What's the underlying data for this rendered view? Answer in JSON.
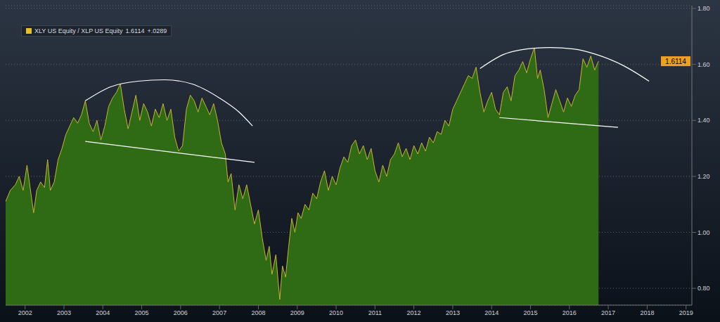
{
  "chart_data": {
    "type": "area",
    "grid": true,
    "legend": "upper left",
    "x": [
      2002.0,
      2002.12,
      2002.25,
      2002.35,
      2002.45,
      2002.55,
      2002.65,
      2002.72,
      2002.8,
      2002.9,
      2003.0,
      2003.08,
      2003.15,
      2003.25,
      2003.35,
      2003.45,
      2003.55,
      2003.65,
      2003.75,
      2003.85,
      2003.95,
      2004.05,
      2004.15,
      2004.25,
      2004.35,
      2004.45,
      2004.55,
      2004.65,
      2004.75,
      2004.85,
      2004.95,
      2005.05,
      2005.15,
      2005.25,
      2005.35,
      2005.45,
      2005.55,
      2005.65,
      2005.75,
      2005.85,
      2005.95,
      2006.05,
      2006.15,
      2006.25,
      2006.35,
      2006.45,
      2006.55,
      2006.65,
      2006.75,
      2006.85,
      2006.95,
      2007.05,
      2007.15,
      2007.25,
      2007.35,
      2007.45,
      2007.55,
      2007.65,
      2007.72,
      2007.8,
      2007.9,
      2008.0,
      2008.1,
      2008.2,
      2008.3,
      2008.4,
      2008.5,
      2008.6,
      2008.7,
      2008.78,
      2008.85,
      2008.95,
      2009.05,
      2009.12,
      2009.2,
      2009.28,
      2009.36,
      2009.44,
      2009.52,
      2009.6,
      2009.7,
      2009.8,
      2009.9,
      2010.0,
      2010.1,
      2010.2,
      2010.3,
      2010.4,
      2010.5,
      2010.6,
      2010.7,
      2010.8,
      2010.9,
      2011.0,
      2011.1,
      2011.2,
      2011.3,
      2011.4,
      2011.5,
      2011.6,
      2011.7,
      2011.8,
      2011.9,
      2012.0,
      2012.1,
      2012.2,
      2012.3,
      2012.4,
      2012.5,
      2012.6,
      2012.7,
      2012.8,
      2012.9,
      2013.0,
      2013.1,
      2013.2,
      2013.3,
      2013.4,
      2013.5,
      2013.6,
      2013.7,
      2013.8,
      2013.9,
      2014.0,
      2014.1,
      2014.2,
      2014.3,
      2014.4,
      2014.5,
      2014.6,
      2014.7,
      2014.8,
      2014.9,
      2015.0,
      2015.1,
      2015.2,
      2015.3,
      2015.4,
      2015.5,
      2015.6,
      2015.68,
      2015.75,
      2015.85,
      2015.95,
      2016.05,
      2016.15,
      2016.25,
      2016.35,
      2016.45,
      2016.55,
      2016.65,
      2016.75,
      2016.85,
      2016.95,
      2017.05,
      2017.15,
      2017.25
    ],
    "series": [
      {
        "name": "XLY US Equity / XLP US Equity",
        "color": "#2f6a14",
        "values": [
          1.11,
          1.15,
          1.17,
          1.2,
          1.15,
          1.24,
          1.14,
          1.07,
          1.15,
          1.18,
          1.16,
          1.26,
          1.15,
          1.18,
          1.26,
          1.3,
          1.35,
          1.38,
          1.41,
          1.39,
          1.42,
          1.47,
          1.39,
          1.36,
          1.4,
          1.33,
          1.38,
          1.45,
          1.48,
          1.5,
          1.53,
          1.44,
          1.37,
          1.43,
          1.49,
          1.4,
          1.46,
          1.43,
          1.38,
          1.44,
          1.41,
          1.46,
          1.4,
          1.44,
          1.34,
          1.29,
          1.31,
          1.44,
          1.49,
          1.47,
          1.43,
          1.48,
          1.45,
          1.42,
          1.46,
          1.4,
          1.32,
          1.28,
          1.18,
          1.21,
          1.08,
          1.17,
          1.12,
          1.17,
          1.1,
          1.03,
          1.08,
          0.98,
          0.9,
          0.95,
          0.85,
          0.92,
          0.76,
          0.88,
          0.84,
          0.95,
          1.05,
          1.0,
          1.07,
          1.05,
          1.1,
          1.08,
          1.14,
          1.12,
          1.18,
          1.22,
          1.15,
          1.2,
          1.17,
          1.23,
          1.27,
          1.25,
          1.31,
          1.33,
          1.28,
          1.31,
          1.26,
          1.3,
          1.22,
          1.18,
          1.24,
          1.2,
          1.26,
          1.28,
          1.32,
          1.27,
          1.3,
          1.26,
          1.31,
          1.28,
          1.32,
          1.29,
          1.34,
          1.32,
          1.36,
          1.35,
          1.4,
          1.38,
          1.44,
          1.47,
          1.5,
          1.53,
          1.56,
          1.55,
          1.59,
          1.5,
          1.43,
          1.47,
          1.5,
          1.44,
          1.42,
          1.5,
          1.52,
          1.47,
          1.56,
          1.58,
          1.61,
          1.57,
          1.62,
          1.66,
          1.55,
          1.58,
          1.51,
          1.41,
          1.46,
          1.51,
          1.47,
          1.43,
          1.48,
          1.45,
          1.49,
          1.51,
          1.62,
          1.59,
          1.63,
          1.58,
          1.6114
        ],
        "last": {
          "value": 1.6114,
          "label": "1.6114"
        },
        "change": {
          "value": 0.0289,
          "label": "+.0289"
        }
      }
    ],
    "trend_lines": [
      {
        "color": "#ffffff",
        "x": [
          2004.05,
          2004.7,
          2005.4,
          2006.1,
          2006.8,
          2007.5,
          2008.0,
          2008.35
        ],
        "values": [
          1.47,
          1.52,
          1.54,
          1.545,
          1.53,
          1.48,
          1.43,
          1.38
        ]
      },
      {
        "color": "#ffffff",
        "x": [
          2004.05,
          2008.4
        ],
        "values": [
          1.325,
          1.25
        ]
      },
      {
        "color": "#ffffff",
        "x": [
          2014.2,
          2014.8,
          2015.4,
          2016.0,
          2016.6,
          2017.2,
          2017.9,
          2018.55
        ],
        "values": [
          1.585,
          1.635,
          1.655,
          1.66,
          1.655,
          1.635,
          1.595,
          1.54
        ]
      },
      {
        "color": "#ffffff",
        "x": [
          2014.7,
          2017.75
        ],
        "values": [
          1.41,
          1.375
        ]
      }
    ],
    "xlim": [
      2002,
      2019.65
    ],
    "xticks": [
      {
        "value": 2002.5,
        "label": "2002"
      },
      {
        "value": 2003.5,
        "label": "2003"
      },
      {
        "value": 2004.5,
        "label": "2004"
      },
      {
        "value": 2005.5,
        "label": "2005"
      },
      {
        "value": 2006.5,
        "label": "2006"
      },
      {
        "value": 2007.5,
        "label": "2007"
      },
      {
        "value": 2008.5,
        "label": "2008"
      },
      {
        "value": 2009.5,
        "label": "2009"
      },
      {
        "value": 2010.5,
        "label": "2010"
      },
      {
        "value": 2011.5,
        "label": "2011"
      },
      {
        "value": 2012.5,
        "label": "2012"
      },
      {
        "value": 2013.5,
        "label": "2013"
      },
      {
        "value": 2014.5,
        "label": "2014"
      },
      {
        "value": 2015.5,
        "label": "2015"
      },
      {
        "value": 2016.5,
        "label": "2016"
      },
      {
        "value": 2017.5,
        "label": "2017"
      },
      {
        "value": 2018.5,
        "label": "2018"
      },
      {
        "value": 2019.5,
        "label": "2019"
      }
    ],
    "ylim": [
      0.74,
      1.81
    ],
    "yticks": [
      {
        "value": 0.8,
        "label": "0.80"
      },
      {
        "value": 1.0,
        "label": "1.00"
      },
      {
        "value": 1.2,
        "label": "1.20"
      },
      {
        "value": 1.4,
        "label": "1.40"
      },
      {
        "value": 1.6,
        "label": "1.60"
      },
      {
        "value": 1.8,
        "label": "1.80"
      }
    ]
  }
}
